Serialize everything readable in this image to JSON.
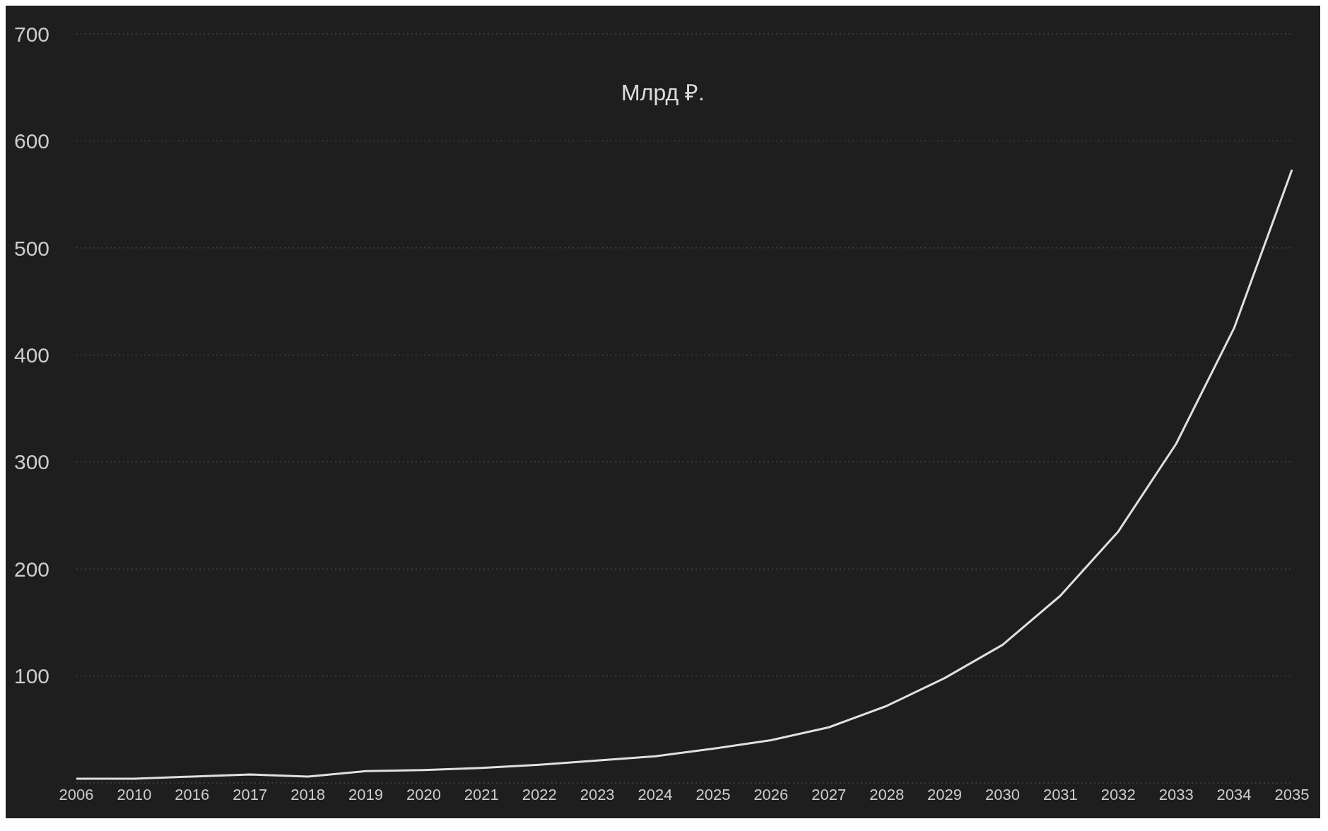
{
  "chart_data": {
    "type": "line",
    "title": "Млрд ₽.",
    "categories": [
      "2006",
      "2010",
      "2016",
      "2017",
      "2018",
      "2019",
      "2020",
      "2021",
      "2022",
      "2023",
      "2024",
      "2025",
      "2026",
      "2027",
      "2028",
      "2029",
      "2030",
      "2031",
      "2032",
      "2033",
      "2034",
      "2035"
    ],
    "series": [
      {
        "color": "#e0e0e0",
        "values": [
          4,
          4,
          6,
          8,
          6,
          11,
          12,
          14,
          17,
          21,
          25,
          32,
          40,
          52,
          72,
          98,
          129,
          175,
          235,
          317,
          425,
          573
        ]
      }
    ],
    "ylim": [
      0,
      700
    ],
    "yticks": [
      {
        "value": 0,
        "label": null
      },
      100,
      200,
      300,
      400,
      500,
      600,
      700
    ],
    "grid": "y",
    "marker": "none",
    "line_style": "solid"
  }
}
